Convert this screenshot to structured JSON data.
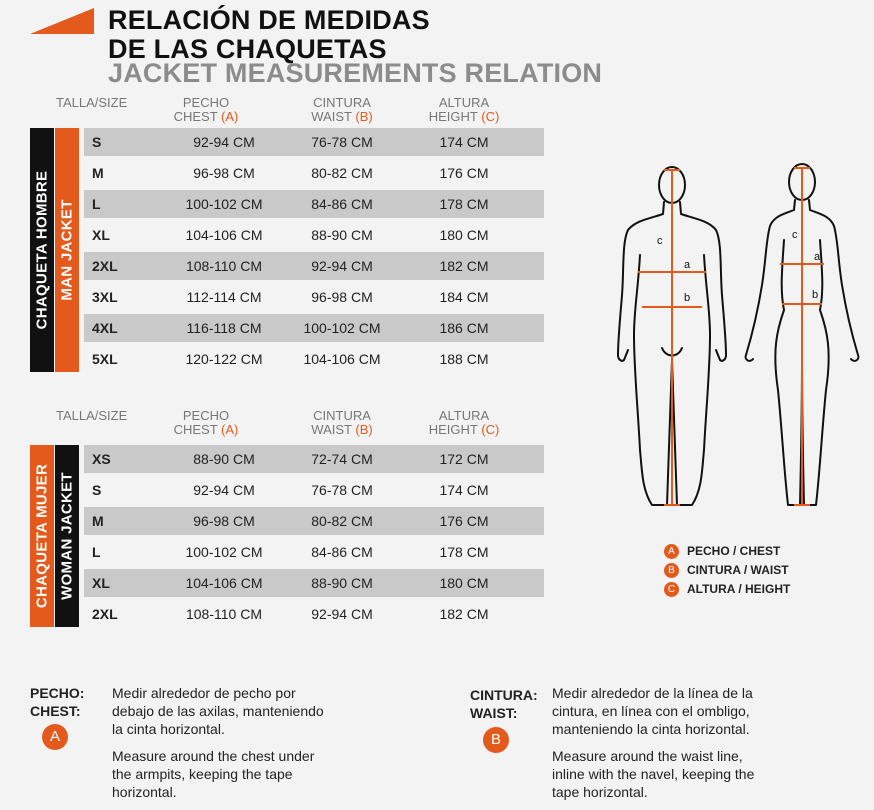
{
  "title": {
    "line1": "RELACIÓN DE MEDIDAS",
    "line2": "DE LAS CHAQUETAS",
    "line3": "JACKET MEASUREMENTS RELATION"
  },
  "headers": {
    "size": "TALLA/SIZE",
    "chest_es": "PECHO",
    "chest_en": "CHEST",
    "waist_es": "CINTURA",
    "waist_en": "WAIST",
    "height_es": "ALTURA",
    "height_en": "HEIGHT",
    "a": "(A)",
    "b": "(B)",
    "c": "(C)"
  },
  "men": {
    "label_es": "CHAQUETA HOMBRE",
    "label_en": "MAN JACKET",
    "rows": [
      [
        "S",
        "92-94 CM",
        "76-78 CM",
        "174 CM"
      ],
      [
        "M",
        "96-98 CM",
        "80-82 CM",
        "176 CM"
      ],
      [
        "L",
        "100-102 CM",
        "84-86 CM",
        "178 CM"
      ],
      [
        "XL",
        "104-106 CM",
        "88-90 CM",
        "180 CM"
      ],
      [
        "2XL",
        "108-110 CM",
        "92-94 CM",
        "182 CM"
      ],
      [
        "3XL",
        "112-114 CM",
        "96-98 CM",
        "184 CM"
      ],
      [
        "4XL",
        "116-118 CM",
        "100-102 CM",
        "186 CM"
      ],
      [
        "5XL",
        "120-122 CM",
        "104-106 CM",
        "188 CM"
      ]
    ]
  },
  "women": {
    "label_es": "CHAQUETA MUJER",
    "label_en": "WOMAN JACKET",
    "rows": [
      [
        "XS",
        "88-90 CM",
        "72-74 CM",
        "172 CM"
      ],
      [
        "S",
        "92-94 CM",
        "76-78 CM",
        "174 CM"
      ],
      [
        "M",
        "96-98 CM",
        "80-82 CM",
        "176 CM"
      ],
      [
        "L",
        "100-102 CM",
        "84-86 CM",
        "178 CM"
      ],
      [
        "XL",
        "104-106 CM",
        "88-90 CM",
        "180 CM"
      ],
      [
        "2XL",
        "108-110 CM",
        "92-94 CM",
        "182 CM"
      ]
    ]
  },
  "figure_marks": {
    "a": "a",
    "b": "b",
    "c": "c"
  },
  "legend": [
    {
      "letter": "A",
      "text": "PECHO / CHEST"
    },
    {
      "letter": "B",
      "text": "CINTURA / WAIST"
    },
    {
      "letter": "C",
      "text": "ALTURA / HEIGHT"
    }
  ],
  "notes": {
    "chest": {
      "label1": "PECHO:",
      "label2": "CHEST:",
      "letter": "A",
      "es": [
        "Medir alrededor de pecho por",
        "debajo de las axilas, manteniendo",
        "la cinta horizontal."
      ],
      "en": [
        "Measure around the chest under",
        "the armpits, keeping the tape",
        "horizontal."
      ]
    },
    "waist": {
      "label1": "CINTURA:",
      "label2": "WAIST:",
      "letter": "B",
      "es": [
        "Medir alrededor de la línea de la",
        "cintura, en línea con el ombligo,",
        "manteniendo la cinta horizontal."
      ],
      "en": [
        "Measure around the waist line,",
        "inline with the navel, keeping the",
        "tape horizontal."
      ]
    }
  },
  "colors": {
    "accent": "#e35a1c",
    "dark": "#111111",
    "shade": "#c9c9c9"
  }
}
